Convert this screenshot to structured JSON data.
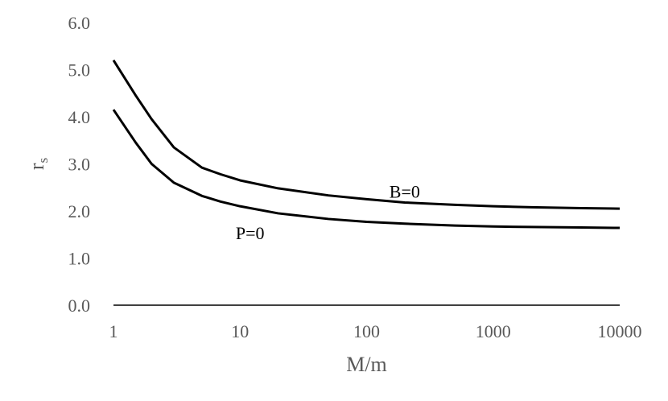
{
  "chart_data": {
    "type": "line",
    "xlabel": "M/m",
    "ylabel": "r",
    "ylabel_subscript": "s",
    "x_scale": "log",
    "xlim": [
      1,
      10000
    ],
    "ylim": [
      0,
      6
    ],
    "x_ticks": [
      "1",
      "10",
      "100",
      "1000",
      "10000"
    ],
    "y_ticks": [
      "0.0",
      "1.0",
      "2.0",
      "3.0",
      "4.0",
      "5.0",
      "6.0"
    ],
    "grid": false,
    "series": [
      {
        "name": "B=0",
        "x": [
          1,
          1.5,
          2,
          3,
          5,
          7,
          10,
          20,
          50,
          100,
          200,
          500,
          1000,
          2000,
          5000,
          10000
        ],
        "y": [
          5.2,
          4.45,
          3.95,
          3.35,
          2.92,
          2.78,
          2.65,
          2.48,
          2.33,
          2.25,
          2.18,
          2.13,
          2.1,
          2.08,
          2.06,
          2.05
        ]
      },
      {
        "name": "P=0",
        "x": [
          1,
          1.5,
          2,
          3,
          5,
          7,
          10,
          20,
          50,
          100,
          200,
          500,
          1000,
          2000,
          5000,
          10000
        ],
        "y": [
          4.15,
          3.45,
          3.0,
          2.6,
          2.32,
          2.2,
          2.1,
          1.95,
          1.83,
          1.77,
          1.73,
          1.69,
          1.67,
          1.66,
          1.65,
          1.64
        ]
      }
    ],
    "line_color": "#000000",
    "text_color": "#595959"
  }
}
